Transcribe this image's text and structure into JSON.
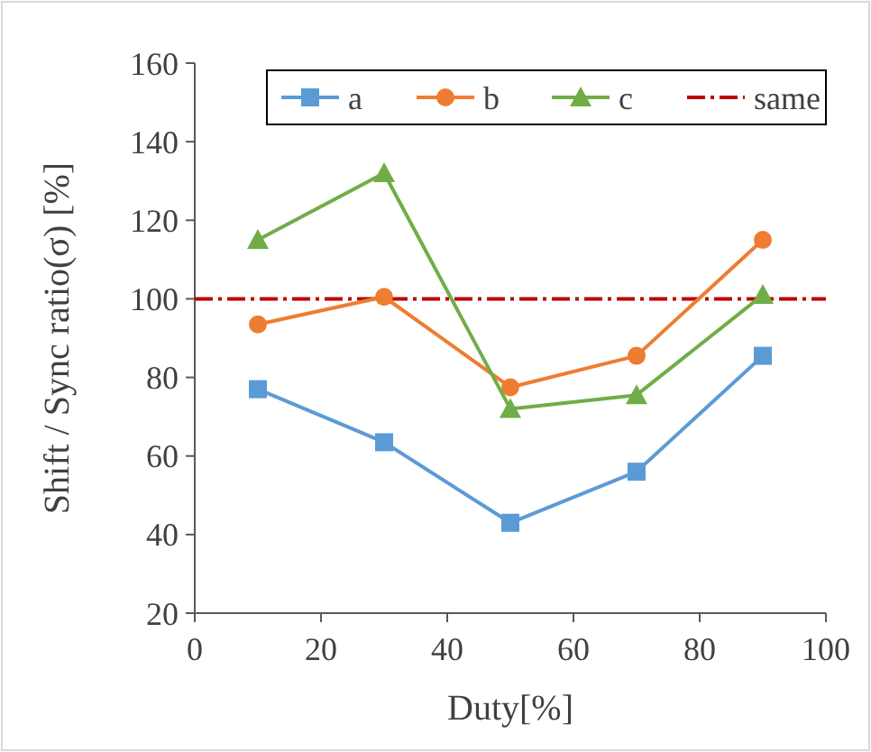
{
  "chart_data": {
    "type": "line",
    "xlabel": "Duty[%]",
    "ylabel": "Shift / Sync ratio(σ) [%]",
    "x": [
      10,
      30,
      50,
      70,
      90
    ],
    "series": [
      {
        "name": "a",
        "color": "#5b9bd5",
        "marker": "square",
        "values": [
          77,
          63.5,
          43,
          56,
          85.5
        ]
      },
      {
        "name": "b",
        "color": "#ed7d31",
        "marker": "circle",
        "values": [
          93.5,
          100.5,
          77.5,
          85.5,
          115
        ]
      },
      {
        "name": "c",
        "color": "#70ad47",
        "marker": "triangle",
        "values": [
          115,
          132,
          72,
          75.5,
          101
        ]
      }
    ],
    "ref_lines": [
      {
        "axis": "y",
        "value": 100,
        "label": "same",
        "color": "#c00000",
        "line_style": "dashdot"
      }
    ],
    "xlim": [
      0,
      100
    ],
    "xticks": [
      0,
      20,
      40,
      60,
      80,
      100
    ],
    "ylim": [
      20,
      160
    ],
    "yticks": [
      20,
      40,
      60,
      80,
      100,
      120,
      140,
      160
    ],
    "grid": false,
    "legend": "top"
  }
}
